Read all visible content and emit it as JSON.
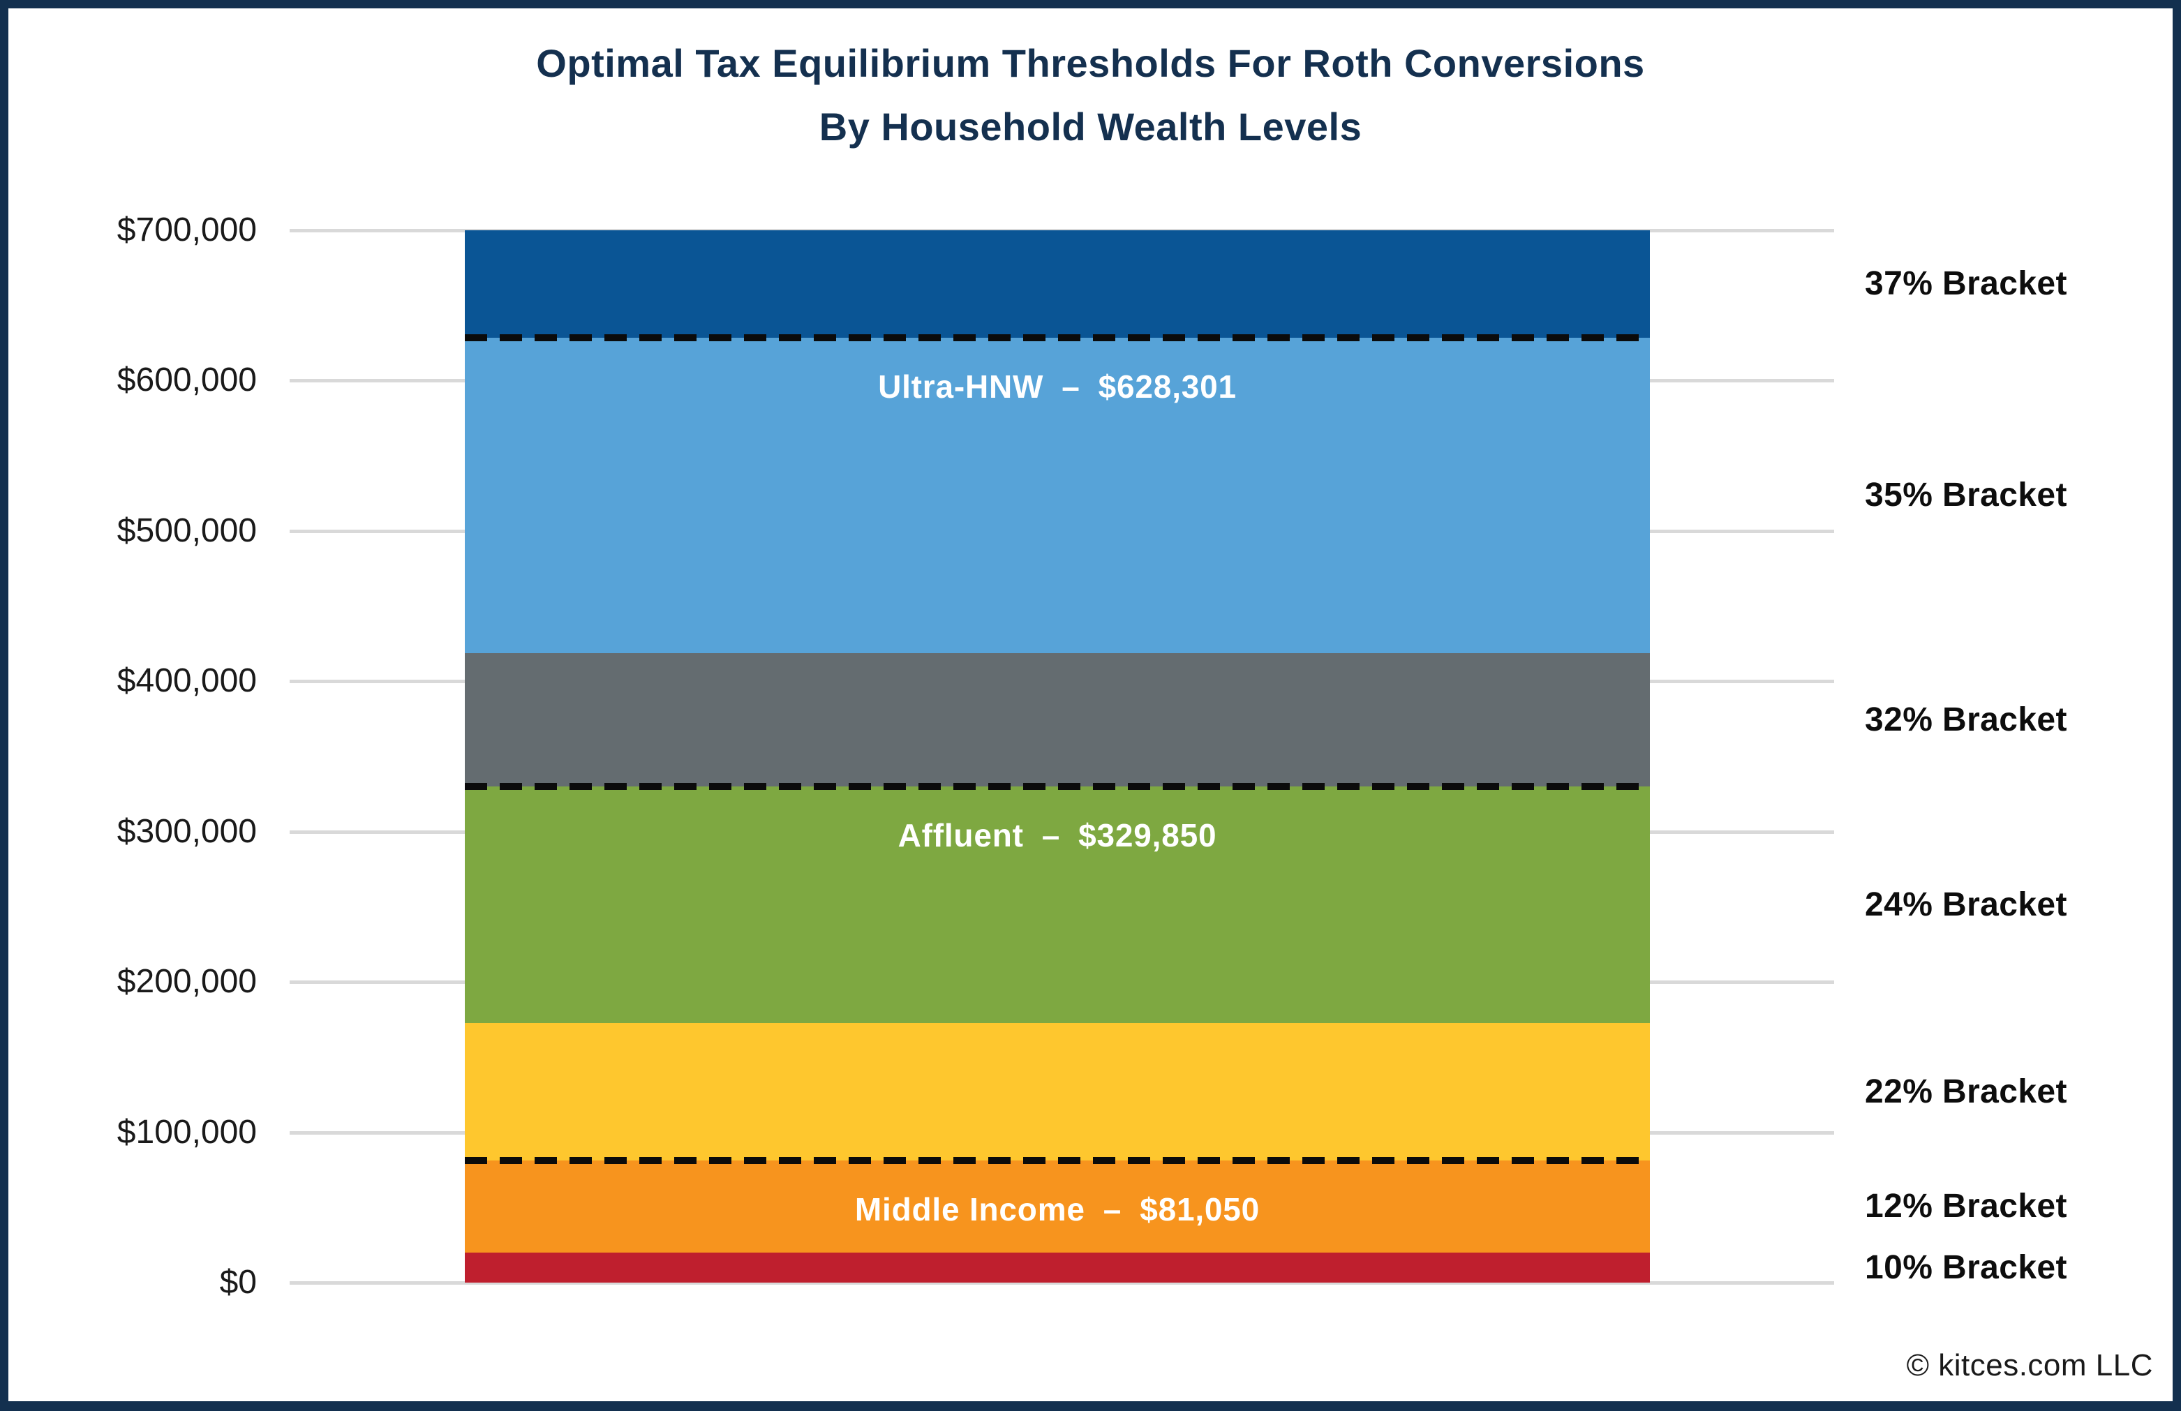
{
  "page": {
    "title_line1": "Optimal Tax Equilibrium Thresholds For Roth Conversions",
    "title_line2": "By Household Wealth Levels",
    "footer": "© kitces.com LLC"
  },
  "colors": {
    "frame_navy": "#13304F",
    "title_navy": "#14304F",
    "gridline": "#D9D9D9",
    "threshold_dash": "#0B0B0B",
    "bracket_label_text": "#0D0D0D",
    "tick_label_text": "#1A1A1A",
    "inner_label_text": "#FFFFFF"
  },
  "chart_data": {
    "type": "bar",
    "title": "Optimal Tax Equilibrium Thresholds For Roth Conversions By Household Wealth Levels",
    "xlabel": "",
    "ylabel": "",
    "ylim": [
      0,
      700000
    ],
    "grid": "horizontal",
    "legend": "none",
    "y_ticks": [
      {
        "label": "$700,000",
        "value": 700000
      },
      {
        "label": "$600,000",
        "value": 600000
      },
      {
        "label": "$500,000",
        "value": 500000
      },
      {
        "label": "$400,000",
        "value": 400000
      },
      {
        "label": "$300,000",
        "value": 300000
      },
      {
        "label": "$200,000",
        "value": 200000
      },
      {
        "label": "$100,000",
        "value": 100000
      },
      {
        "label": "$0",
        "value": 0
      }
    ],
    "brackets": [
      {
        "label": "10% Bracket",
        "rate": "10%",
        "from": 0,
        "to": 19900,
        "color": "#BF1F2E"
      },
      {
        "label": "12% Bracket",
        "rate": "12%",
        "from": 19900,
        "to": 81050,
        "color": "#F7941E"
      },
      {
        "label": "22% Bracket",
        "rate": "22%",
        "from": 81050,
        "to": 172750,
        "color": "#FEC72E"
      },
      {
        "label": "24% Bracket",
        "rate": "24%",
        "from": 172750,
        "to": 329850,
        "color": "#7EA841"
      },
      {
        "label": "32% Bracket",
        "rate": "32%",
        "from": 329850,
        "to": 418850,
        "color": "#646C70"
      },
      {
        "label": "35% Bracket",
        "rate": "35%",
        "from": 418850,
        "to": 628300,
        "color": "#57A3D8"
      },
      {
        "label": "37% Bracket",
        "rate": "37%",
        "from": 628300,
        "to": 700000,
        "color": "#0A5595"
      }
    ],
    "thresholds": [
      {
        "name": "Ultra-HNW",
        "separator": "–",
        "value_label": "$628,301",
        "value": 628301
      },
      {
        "name": "Affluent",
        "separator": "–",
        "value_label": "$329,850",
        "value": 329850
      },
      {
        "name": "Middle Income",
        "separator": "–",
        "value_label": "$81,050",
        "value": 81050
      }
    ]
  }
}
